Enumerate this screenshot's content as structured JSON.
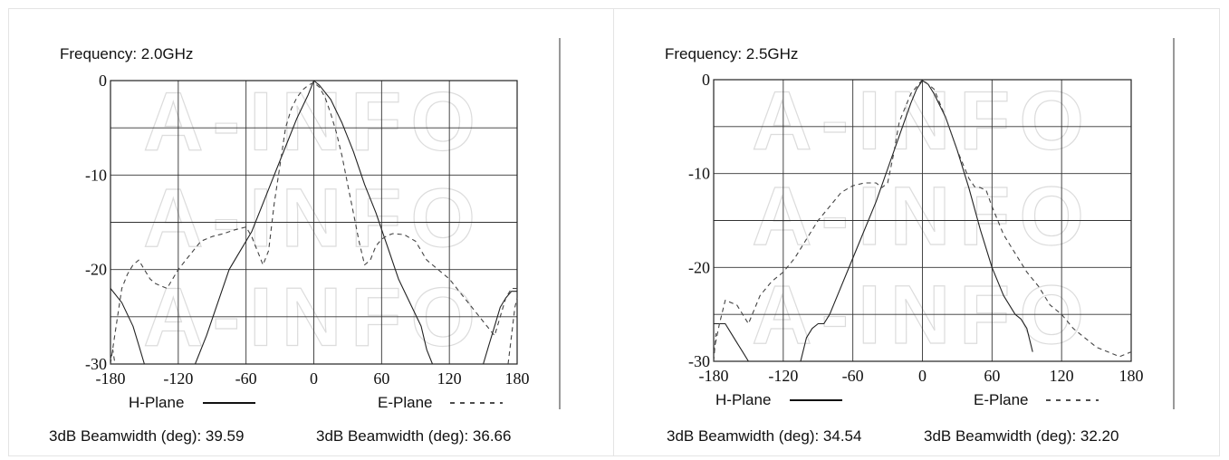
{
  "chart_data": [
    {
      "type": "line",
      "title": "Frequency: 2.0GHz",
      "xlim": [
        -180,
        180
      ],
      "ylim": [
        -30,
        0
      ],
      "x_ticks": [
        "-180",
        "-120",
        "-60",
        "0",
        "60",
        "120",
        "180"
      ],
      "y_ticks": [
        "0",
        "-10",
        "-20",
        "-30"
      ],
      "grid": true,
      "watermark": "A-INFO",
      "legend": {
        "placement": "bottom",
        "items": [
          {
            "label": "H-Plane",
            "style": "solid"
          },
          {
            "label": "E-Plane",
            "style": "dashed"
          }
        ]
      },
      "series": [
        {
          "name": "H-Plane",
          "style": "solid",
          "x": [
            -180,
            -170,
            -160,
            -155,
            -150
          ],
          "y": [
            -22,
            -23.5,
            -26,
            -28,
            -30
          ]
        },
        {
          "name": "H-Plane",
          "style": "solid",
          "x": [
            -105,
            -95,
            -85,
            -75,
            -65,
            -55,
            -45,
            -35,
            -25,
            -15,
            -5,
            0,
            5,
            15,
            25,
            35,
            45,
            55,
            65,
            75,
            85,
            95,
            100,
            105
          ],
          "y": [
            -30,
            -27,
            -23.5,
            -20,
            -18,
            -16,
            -13,
            -10,
            -7,
            -4,
            -1.5,
            0,
            -0.5,
            -2,
            -4.5,
            -7.5,
            -11,
            -14,
            -17.5,
            -21,
            -23.5,
            -26,
            -28.5,
            -30
          ]
        },
        {
          "name": "H-Plane",
          "style": "solid",
          "x": [
            150,
            155,
            160,
            165,
            170,
            175,
            180
          ],
          "y": [
            -30,
            -28,
            -26,
            -24,
            -23,
            -22.3,
            -22.3
          ]
        },
        {
          "name": "E-Plane",
          "style": "dashed",
          "x": [
            -180,
            -175,
            -170,
            -165,
            -160,
            -155,
            -150,
            -145,
            -140,
            -130,
            -125,
            -120,
            -110,
            -100,
            -90,
            -80,
            -70,
            -60,
            -55,
            -50,
            -45,
            -40,
            -35,
            -30,
            -25,
            -20,
            -15,
            -10,
            -5,
            0,
            5,
            10,
            15,
            20,
            25,
            30,
            35,
            40,
            45,
            50,
            55,
            60,
            65,
            70,
            80,
            90,
            100,
            110,
            120,
            130,
            140,
            150,
            160,
            165,
            170,
            175,
            180
          ],
          "y": [
            -30,
            -26,
            -22,
            -20.5,
            -19.5,
            -19,
            -20,
            -21,
            -21.5,
            -22,
            -21,
            -20,
            -18.5,
            -17,
            -16.5,
            -16.2,
            -15.8,
            -15.5,
            -16.5,
            -18,
            -19.5,
            -18,
            -13,
            -9,
            -5,
            -3,
            -1.8,
            -1,
            -0.5,
            -0.2,
            -0.7,
            -1.8,
            -3.5,
            -5.5,
            -8,
            -11,
            -14,
            -17,
            -19.5,
            -19,
            -17.5,
            -16.8,
            -16.4,
            -16.2,
            -16.3,
            -17,
            -19,
            -20,
            -21,
            -22.5,
            -24,
            -25.5,
            -27,
            -25,
            -23,
            -22,
            -22
          ]
        },
        {
          "name": "E-Plane",
          "style": "dashed",
          "x": [
            -180,
            -178,
            -176
          ],
          "y": [
            -29.5,
            -28.5,
            -30
          ]
        },
        {
          "name": "E-Plane",
          "style": "dashed",
          "x": [
            172,
            175,
            178,
            180
          ],
          "y": [
            -30,
            -27,
            -24,
            -23
          ]
        }
      ]
    },
    {
      "type": "line",
      "title": "Frequency: 2.5GHz",
      "xlim": [
        -180,
        180
      ],
      "ylim": [
        -30,
        0
      ],
      "x_ticks": [
        "-180",
        "-120",
        "-60",
        "0",
        "60",
        "120",
        "180"
      ],
      "y_ticks": [
        "0",
        "-10",
        "-20",
        "-30"
      ],
      "grid": true,
      "watermark": "A-INFO",
      "legend": {
        "placement": "bottom",
        "items": [
          {
            "label": "H-Plane",
            "style": "solid"
          },
          {
            "label": "E-Plane",
            "style": "dashed"
          }
        ]
      },
      "series": [
        {
          "name": "H-Plane",
          "style": "solid",
          "x": [
            -180,
            -170,
            -165,
            -160,
            -155,
            -150
          ],
          "y": [
            -26,
            -26,
            -27,
            -28,
            -29,
            -30
          ]
        },
        {
          "name": "H-Plane",
          "style": "solid",
          "x": [
            -105,
            -100,
            -95,
            -90,
            -85,
            -80,
            -70,
            -60,
            -50,
            -40,
            -30,
            -20,
            -10,
            -5,
            0,
            5,
            10,
            20,
            30,
            40,
            50,
            60,
            70,
            80,
            85,
            90,
            95
          ],
          "y": [
            -30,
            -27.5,
            -26.5,
            -26,
            -26,
            -25,
            -22,
            -19,
            -16,
            -13,
            -9.5,
            -6,
            -2.5,
            -1,
            -0.1,
            -0.5,
            -1.5,
            -4,
            -7.5,
            -11.5,
            -16,
            -20,
            -23,
            -25,
            -25.5,
            -26.5,
            -29
          ]
        },
        {
          "name": "E-Plane",
          "style": "dashed",
          "x": [
            -180,
            -175,
            -170,
            -160,
            -150,
            -140,
            -130,
            -120,
            -110,
            -100,
            -90,
            -80,
            -70,
            -60,
            -50,
            -40,
            -35,
            -30,
            -25,
            -20,
            -10,
            0,
            10,
            20,
            30,
            40,
            45,
            50,
            55,
            60,
            70,
            80,
            90,
            100,
            110,
            120,
            130,
            140,
            150,
            160,
            170,
            180
          ],
          "y": [
            -29,
            -26,
            -23.5,
            -24,
            -26,
            -23,
            -21.5,
            -20.5,
            -19,
            -17,
            -15,
            -13.5,
            -12,
            -11.3,
            -11,
            -11,
            -11.5,
            -11,
            -8,
            -4.5,
            -1.5,
            0,
            -1,
            -4,
            -7.5,
            -10.5,
            -11.4,
            -11.5,
            -11.8,
            -13.5,
            -16.5,
            -18.5,
            -20.5,
            -22,
            -24,
            -25,
            -26.5,
            -27.5,
            -28.5,
            -29,
            -29.5,
            -29
          ]
        },
        {
          "name": "E-Plane",
          "style": "dashed",
          "x": [
            -180,
            -178
          ],
          "y": [
            -30,
            -27
          ]
        }
      ]
    }
  ],
  "footers": [
    {
      "h_beamwidth": "3dB Beamwidth (deg): 39.59",
      "e_beamwidth": "3dB Beamwidth (deg): 36.66"
    },
    {
      "h_beamwidth": "3dB Beamwidth (deg): 34.54",
      "e_beamwidth": "3dB Beamwidth (deg): 32.20"
    }
  ]
}
